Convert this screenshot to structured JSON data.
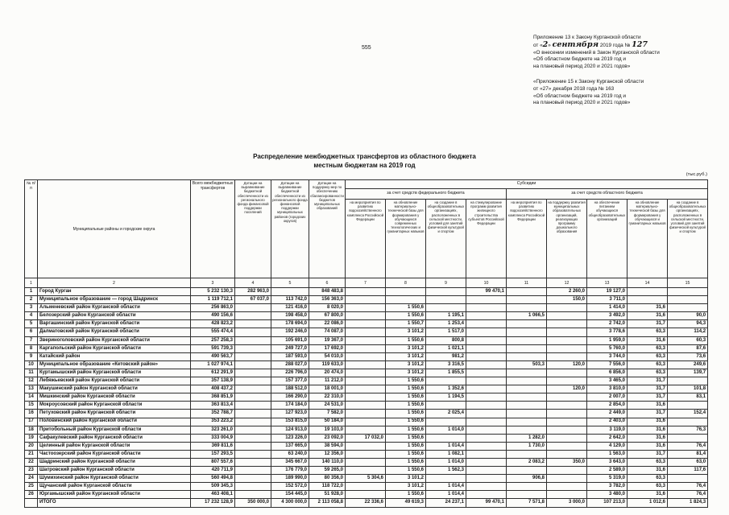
{
  "page": {
    "number": "555"
  },
  "annex": {
    "block1": {
      "line1": "Приложение 13 к Закону Курганской области",
      "line2_pre": "от «",
      "line2_day": "2",
      "line2_mid": "» ",
      "line2_month": "сентября",
      "line2_tail": " 2019 года № ",
      "line2_num": "127",
      "line3": "«О внесении изменений в Закон Курганской области",
      "line4": "«Об областном бюджете на 2019 год и",
      "line5": "на плановый период 2020 и 2021 годов»"
    },
    "block2": {
      "line1": "«Приложение 15 к Закону Курганской области",
      "line2": "от «27» декабря 2018 года  № 163",
      "line3": "«Об областном бюджете на 2019 год и",
      "line4": "на плановый период 2020 и 2021 годов»"
    }
  },
  "title": {
    "line1": "Распределение межбюджетных трансфертов из областного бюджета",
    "line2": "местным бюджетам на 2019 год"
  },
  "units": "(тыс.руб.)",
  "table": {
    "headers": {
      "num": "№ п/п",
      "name": "Муниципальные районы и городские округа",
      "total": "Всего межбюджетных трансфертов",
      "dot1": "Дотации на выравнивание бюджетной обеспеченности из регионального фонда финансовой поддержки поселений",
      "dot2": "Дотации на выравнивание бюджетной обеспеченности из регионального фонда финансовой поддержки муниципальных районов (городских округов)",
      "dot3": "Дотации на поддержку мер по обеспечению сбалансированности бюджетов муниципальных образований",
      "subsidies": "Субсидии",
      "federal": "за счет средств федерального бюджета",
      "regional": "за счет средств областного бюджета",
      "sub_cols": [
        "на мероприятия по развитию водохозяйственного комплекса Российской Федерации",
        "на обновление материально-технической базы для формирования у обучающихся современных технологических и гуманитарных навыков",
        "на создание в общеобразовательных организациях, расположенных в сельской местности, условий для занятий физической культурой и спортом",
        "на стимулирование программ развития жилищного строительства субъектов Российской Федерации",
        "на мероприятия по развитию водохозяйственного комплекса Российской Федерации",
        "на поддержку развития муниципальных образовательных организаций, реализующих программу дошкольного образования",
        "на обеспечение питанием обучающихся общеобразовательных организаций",
        "на обновление материально-технической базы для формирования у обучающихся и гуманитарных навыков",
        "на создание в общеобразовательных организациях, расположенных в сельской местности, условий для занятий физической культурой и спортом"
      ],
      "col_numbers": [
        "1",
        "2",
        "3",
        "4",
        "5",
        "6",
        "7",
        "8",
        "9",
        "10",
        "11",
        "12",
        "13",
        "14",
        "15"
      ]
    },
    "rows": [
      {
        "num": "1",
        "name": "Город Курган",
        "values": [
          "5 232 130,3",
          "282 963,0",
          "",
          "848 483,8",
          "",
          "",
          "",
          "99 470,1",
          "",
          "2 260,0",
          "19 127,0",
          "",
          ""
        ]
      },
      {
        "num": "2",
        "name": "Муниципальное образование — город Шадринск",
        "values": [
          "1 119 712,1",
          "67 037,0",
          "113 742,0",
          "156 363,0",
          "",
          "",
          "",
          "",
          "",
          "150,0",
          "3 711,0",
          "",
          ""
        ]
      },
      {
        "num": "3",
        "name": "Альменевский район Курганской области",
        "values": [
          "256 863,0",
          "",
          "121 416,0",
          "8 020,0",
          "",
          "1 550,6",
          "",
          "",
          "",
          "",
          "1 414,0",
          "31,6",
          ""
        ]
      },
      {
        "num": "4",
        "name": "Белозерский район Курганской области",
        "values": [
          "490 156,6",
          "",
          "198 458,0",
          "67 800,0",
          "",
          "1 550,6",
          "1 195,1",
          "",
          "1 066,5",
          "",
          "3 492,0",
          "31,6",
          "90,0"
        ]
      },
      {
        "num": "5",
        "name": "Варгашинский район Курганской области",
        "values": [
          "428 823,2",
          "",
          "178 694,0",
          "22 086,0",
          "",
          "1 550,7",
          "1 253,4",
          "",
          "",
          "",
          "2 742,0",
          "31,7",
          "94,3"
        ]
      },
      {
        "num": "6",
        "name": "Далматовский район Курганской области",
        "values": [
          "555 474,4",
          "",
          "192 246,0",
          "74 087,0",
          "",
          "3 101,2",
          "1 517,0",
          "",
          "",
          "",
          "3 778,6",
          "63,3",
          "114,2"
        ]
      },
      {
        "num": "7",
        "name": "Звериноголовский район Курганской области",
        "values": [
          "257 258,3",
          "",
          "105 691,0",
          "19 367,0",
          "",
          "1 550,6",
          "800,8",
          "",
          "",
          "",
          "1 959,0",
          "31,6",
          "60,3"
        ]
      },
      {
        "num": "8",
        "name": "Каргапольский район Курганской области",
        "values": [
          "591 739,3",
          "",
          "249 727,0",
          "17 692,0",
          "",
          "3 101,2",
          "1 021,1",
          "",
          "",
          "",
          "5 760,0",
          "63,3",
          "87,6"
        ]
      },
      {
        "num": "9",
        "name": "Катайский район",
        "values": [
          "490 563,7",
          "",
          "187 593,0",
          "54 010,0",
          "",
          "3 101,2",
          "981,2",
          "",
          "",
          "",
          "3 744,0",
          "63,3",
          "73,6"
        ]
      },
      {
        "num": "10",
        "name": "Муниципальное образование «Кетовский район»",
        "values": [
          "1 027 974,1",
          "",
          "288 027,0",
          "119 633,0",
          "",
          "3 101,2",
          "3 316,5",
          "",
          "503,3",
          "120,0",
          "7 556,0",
          "63,3",
          "249,6"
        ]
      },
      {
        "num": "11",
        "name": "Куртамышский район Курганской области",
        "values": [
          "612 291,9",
          "",
          "226 796,0",
          "20 474,0",
          "",
          "3 101,2",
          "1 855,5",
          "",
          "",
          "",
          "6 856,0",
          "63,3",
          "139,7"
        ]
      },
      {
        "num": "12",
        "name": "Лебяжьевский район Курганской области",
        "values": [
          "357 138,9",
          "",
          "157 377,0",
          "11 212,0",
          "",
          "1 550,6",
          "",
          "",
          "",
          "",
          "3 465,0",
          "31,7",
          ""
        ]
      },
      {
        "num": "13",
        "name": "Макушинский район Курганской области",
        "values": [
          "408 437,2",
          "",
          "188 512,0",
          "18 001,0",
          "",
          "1 550,6",
          "1 352,6",
          "",
          "",
          "120,0",
          "3 810,0",
          "31,7",
          "101,8"
        ]
      },
      {
        "num": "14",
        "name": "Мишкинский район Курганской области",
        "values": [
          "368 851,9",
          "",
          "166 290,0",
          "22 310,0",
          "",
          "1 550,6",
          "1 194,5",
          "",
          "",
          "",
          "2 007,0",
          "31,7",
          "83,1"
        ]
      },
      {
        "num": "15",
        "name": "Мокроусовский район Курганской области",
        "values": [
          "363 813,4",
          "",
          "174 184,0",
          "24 531,0",
          "",
          "1 550,6",
          "",
          "",
          "",
          "",
          "2 854,0",
          "31,6",
          ""
        ]
      },
      {
        "num": "16",
        "name": "Петуховский район Курганской области",
        "values": [
          "352 788,7",
          "",
          "127 923,0",
          "7 582,0",
          "",
          "1 550,6",
          "2 025,4",
          "",
          "",
          "",
          "2 449,0",
          "31,7",
          "152,4"
        ]
      },
      {
        "num": "17",
        "name": "Половинский район Курганской области",
        "values": [
          "353 223,2",
          "",
          "153 815,0",
          "50 184,0",
          "",
          "1 550,6",
          "",
          "",
          "",
          "",
          "2 403,0",
          "31,6",
          ""
        ]
      },
      {
        "num": "18",
        "name": "Притобольный район Курганской области",
        "values": [
          "323 261,0",
          "",
          "124 913,0",
          "19 103,0",
          "",
          "1 550,6",
          "1 014,0",
          "",
          "",
          "",
          "3 119,0",
          "31,6",
          "76,3"
        ]
      },
      {
        "num": "19",
        "name": "Сафакулевский район Курганской области",
        "values": [
          "333 004,9",
          "",
          "123 226,0",
          "23 092,0",
          "17 032,0",
          "1 550,6",
          "",
          "",
          "1 282,0",
          "",
          "2 642,0",
          "31,6",
          ""
        ]
      },
      {
        "num": "20",
        "name": "Целинный район Курганской области",
        "values": [
          "369 811,6",
          "",
          "137 665,0",
          "38 594,0",
          "",
          "1 550,6",
          "1 014,4",
          "",
          "1 730,0",
          "",
          "4 129,0",
          "31,6",
          "76,4"
        ]
      },
      {
        "num": "21",
        "name": "Частоозерский район Курганской области",
        "values": [
          "157 293,5",
          "",
          "63 240,0",
          "12 356,0",
          "",
          "1 550,6",
          "1 082,1",
          "",
          "",
          "",
          "1 563,0",
          "31,7",
          "81,4"
        ]
      },
      {
        "num": "22",
        "name": "Шадринский район Курганской области",
        "values": [
          "807 557,6",
          "",
          "345 667,0",
          "140 110,0",
          "",
          "1 550,6",
          "1 014,0",
          "",
          "2 083,2",
          "350,0",
          "3 643,0",
          "63,3",
          "63,0"
        ]
      },
      {
        "num": "23",
        "name": "Шатровский район Курганской области",
        "values": [
          "420 711,9",
          "",
          "176 779,0",
          "59 265,0",
          "",
          "1 550,6",
          "1 562,3",
          "",
          "",
          "",
          "2 589,0",
          "31,6",
          "117,6"
        ]
      },
      {
        "num": "24",
        "name": "Шумихинский район Курганской области",
        "values": [
          "560 494,8",
          "",
          "189 990,0",
          "80 356,0",
          "5 304,6",
          "3 101,2",
          "",
          "",
          "906,8",
          "",
          "5 319,0",
          "63,3",
          ""
        ]
      },
      {
        "num": "25",
        "name": "Щучанский район Курганской области",
        "values": [
          "509 345,3",
          "",
          "152 572,0",
          "118 722,0",
          "",
          "3 101,2",
          "1 014,4",
          "",
          "",
          "",
          "3 782,0",
          "63,3",
          "76,4"
        ]
      },
      {
        "num": "26",
        "name": "Юргамышский район Курганской области",
        "values": [
          "463 408,1",
          "",
          "154 445,0",
          "51 928,0",
          "",
          "1 550,6",
          "1 014,4",
          "",
          "",
          "",
          "3 480,0",
          "31,6",
          "76,4"
        ]
      }
    ],
    "total_row": {
      "label": "ИТОГО",
      "values": [
        "17 232 128,9",
        "350 000,0",
        "4 300 000,0",
        "2 113 058,8",
        "22 336,6",
        "49 619,3",
        "24 237,1",
        "99 470,1",
        "7 571,8",
        "3 000,0",
        "107 213,0",
        "1 012,6",
        "1 824,3"
      ]
    }
  }
}
